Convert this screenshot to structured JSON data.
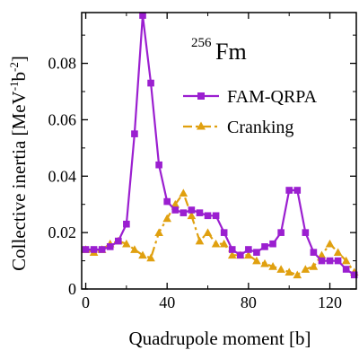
{
  "colors": {
    "fam_qrpa": "#9b1fd0",
    "cranking": "#e0a00f",
    "axes": "#000000"
  },
  "nucleus": {
    "mass_number": "256",
    "symbol": "Fm"
  },
  "chart_data": {
    "type": "line",
    "xlabel": "Quadrupole moment [b]",
    "ylabel": "Collective inertia [MeV",
    "ylabel_sup1": "-1",
    "ylabel_mid": "b",
    "ylabel_sup2": "-2",
    "ylabel_end": "]",
    "xlim": [
      -2,
      133
    ],
    "ylim": [
      0,
      0.098
    ],
    "xticks": [
      0,
      40,
      80,
      120
    ],
    "xtick_labels": [
      "0",
      "40",
      "80",
      "120"
    ],
    "yticks": [
      0,
      0.02,
      0.04,
      0.06,
      0.08
    ],
    "ytick_labels": [
      "0",
      "0.02",
      "0.04",
      "0.06",
      "0.08"
    ],
    "legend_position": "center-right",
    "series": [
      {
        "name": "FAM-QRPA",
        "style": "solid",
        "marker": "square",
        "color_key": "fam_qrpa",
        "x": [
          0,
          4,
          8,
          12,
          16,
          20,
          24,
          28,
          32,
          36,
          40,
          44,
          48,
          52,
          56,
          60,
          64,
          68,
          72,
          76,
          80,
          84,
          88,
          92,
          96,
          100,
          104,
          108,
          112,
          116,
          120,
          124,
          128,
          132
        ],
        "y": [
          0.014,
          0.014,
          0.014,
          0.015,
          0.017,
          0.023,
          0.055,
          0.097,
          0.073,
          0.044,
          0.031,
          0.028,
          0.027,
          0.028,
          0.027,
          0.026,
          0.026,
          0.02,
          0.014,
          0.012,
          0.014,
          0.013,
          0.015,
          0.016,
          0.02,
          0.035,
          0.035,
          0.02,
          0.013,
          0.01,
          0.01,
          0.01,
          0.007,
          0.005
        ]
      },
      {
        "name": "Cranking",
        "style": "dash-dot",
        "marker": "triangle",
        "color_key": "cranking",
        "x": [
          0,
          4,
          8,
          12,
          16,
          20,
          24,
          28,
          32,
          36,
          40,
          44,
          48,
          52,
          56,
          60,
          64,
          68,
          72,
          76,
          80,
          84,
          88,
          92,
          96,
          100,
          104,
          108,
          112,
          116,
          120,
          124,
          128,
          132
        ],
        "y": [
          0.014,
          0.013,
          0.014,
          0.016,
          0.017,
          0.016,
          0.014,
          0.012,
          0.011,
          0.02,
          0.025,
          0.03,
          0.034,
          0.026,
          0.017,
          0.02,
          0.016,
          0.016,
          0.012,
          0.012,
          0.012,
          0.01,
          0.009,
          0.008,
          0.007,
          0.006,
          0.005,
          0.007,
          0.008,
          0.012,
          0.016,
          0.013,
          0.01,
          0.006
        ]
      }
    ]
  }
}
